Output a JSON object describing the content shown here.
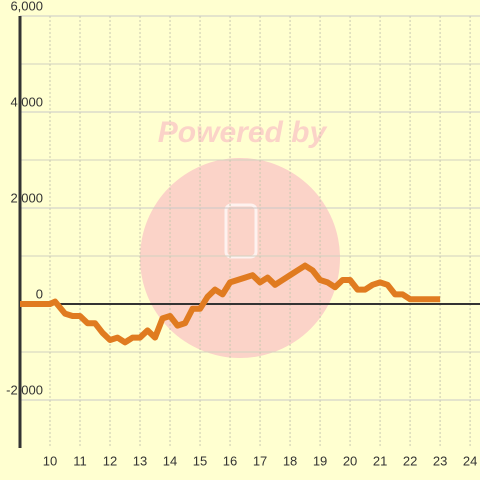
{
  "chart_data": {
    "type": "line",
    "watermark": "Powered by",
    "x": [
      9.0,
      9.5,
      10.0,
      10.17,
      10.5,
      10.75,
      11.0,
      11.25,
      11.5,
      11.75,
      12.0,
      12.25,
      12.5,
      12.75,
      13.0,
      13.25,
      13.5,
      13.75,
      14.0,
      14.25,
      14.5,
      14.75,
      15.0,
      15.25,
      15.5,
      15.75,
      16.0,
      16.25,
      16.5,
      16.75,
      17.0,
      17.25,
      17.5,
      17.75,
      18.0,
      18.25,
      18.5,
      18.75,
      19.0,
      19.25,
      19.5,
      19.75,
      20.0,
      20.25,
      20.5,
      20.75,
      21.0,
      21.25,
      21.5,
      21.75,
      22.0,
      22.25,
      22.5,
      22.75,
      23.0
    ],
    "series": [
      {
        "color": "#e07b20",
        "values": [
          0,
          0,
          0,
          50,
          -200,
          -250,
          -250,
          -400,
          -400,
          -600,
          -750,
          -700,
          -800,
          -700,
          -700,
          -550,
          -700,
          -300,
          -250,
          -450,
          -400,
          -100,
          -100,
          150,
          300,
          200,
          450,
          500,
          550,
          600,
          450,
          550,
          400,
          500,
          600,
          700,
          800,
          700,
          500,
          450,
          350,
          500,
          500,
          300,
          300,
          400,
          450,
          400,
          200,
          200,
          100,
          100,
          100,
          100,
          100
        ]
      }
    ],
    "xlim": [
      9,
      24.33
    ],
    "xticks": [
      10,
      11,
      12,
      13,
      14,
      15,
      16,
      17,
      18,
      19,
      20,
      21,
      22,
      23,
      24
    ],
    "ylim": [
      -3000,
      6000
    ],
    "yticks": [
      {
        "value": 6000,
        "label": "6,000"
      },
      {
        "value": 4000,
        "label": "4,000"
      },
      {
        "value": 2000,
        "label": "2,000"
      },
      0,
      {
        "value": -2000,
        "label": "-2,000"
      }
    ],
    "yminor_ticks": [
      5000,
      3000,
      1000,
      -1000
    ],
    "grid": true
  }
}
